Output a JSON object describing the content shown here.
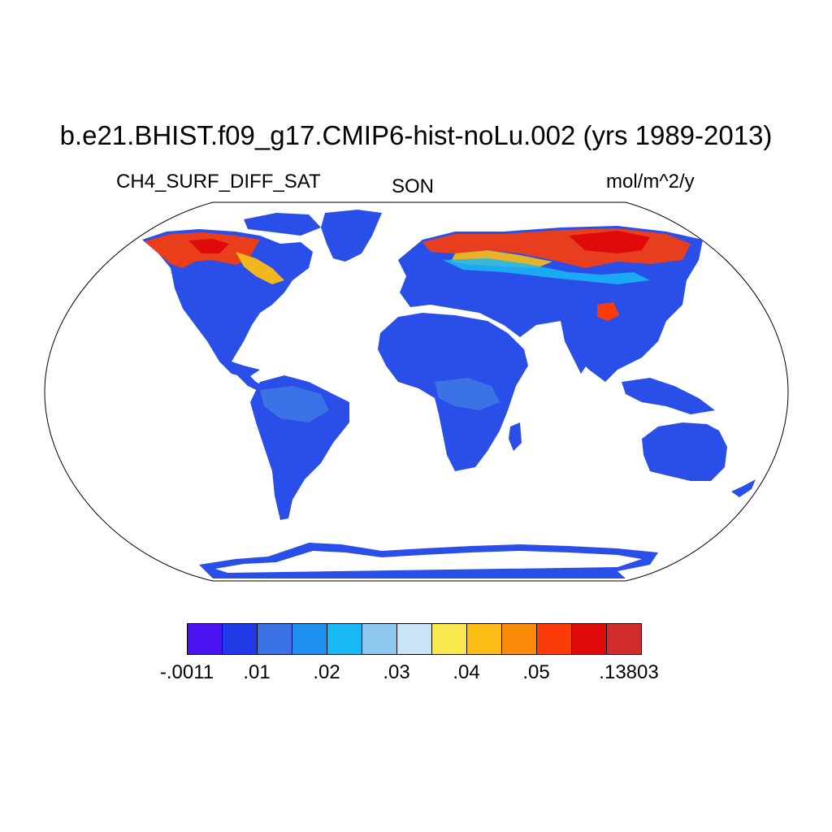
{
  "title": "b.e21.BHIST.f09_g17.CMIP6-hist-noLu.002 (yrs 1989-2013)",
  "variable": "CH4_SURF_DIFF_SAT",
  "season": "SON",
  "units": "mol/m^2/y",
  "colorbar": {
    "colors": [
      "#4a12f0",
      "#1f3ae6",
      "#3b72e6",
      "#1f8ff0",
      "#17b8f4",
      "#8ec8ee",
      "#c8e4f6",
      "#f9e94e",
      "#fbbd14",
      "#fb8c0a",
      "#fb3c08",
      "#e00a0a",
      "#d22c2c"
    ],
    "labels": [
      {
        "text": "-.0011",
        "boundary": 0
      },
      {
        "text": ".01",
        "boundary": 2
      },
      {
        "text": ".02",
        "boundary": 4
      },
      {
        "text": ".03",
        "boundary": 6
      },
      {
        "text": ".04",
        "boundary": 8
      },
      {
        "text": ".05",
        "boundary": 10
      },
      {
        "text": ".13803",
        "boundary": 12
      }
    ]
  }
}
